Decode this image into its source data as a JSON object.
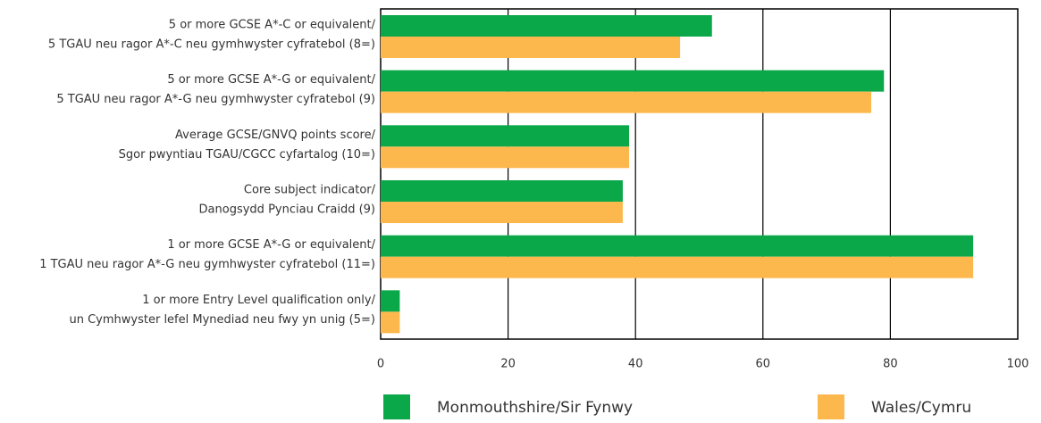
{
  "chart_data": {
    "type": "barh",
    "categories": [
      [
        "5 or more GCSE A*-C or equivalent/",
        "5 TGAU neu ragor A*-C neu gymhwyster cyfratebol (8=)"
      ],
      [
        "5 or more GCSE A*-G or equivalent/",
        "5 TGAU neu ragor A*-G neu gymhwyster cyfratebol (9)"
      ],
      [
        "Average GCSE/GNVQ points score/",
        "Sgor pwyntiau TGAU/CGCC cyfartalog (10=)"
      ],
      [
        "Core subject indicator/",
        "Danogsydd Pynciau Craidd (9)"
      ],
      [
        "1 or more GCSE A*-G or equivalent/",
        "1 TGAU neu ragor A*-G neu gymhwyster cyfratebol (11=)"
      ],
      [
        "1 or more Entry Level qualification only/",
        "un Cymhwyster lefel Mynediad neu fwy yn unig (5=)"
      ]
    ],
    "series": [
      {
        "name": "Monmouthshire/Sir Fynwy",
        "color": "#0ba84a",
        "values": [
          52,
          79,
          39,
          38,
          93,
          3
        ]
      },
      {
        "name": "Wales/Cymru",
        "color": "#fdb84d",
        "values": [
          47,
          77,
          39,
          38,
          93,
          3
        ]
      }
    ],
    "xlim": [
      0,
      100
    ],
    "xticks": [
      0,
      20,
      40,
      60,
      80,
      100
    ],
    "grid": true
  }
}
